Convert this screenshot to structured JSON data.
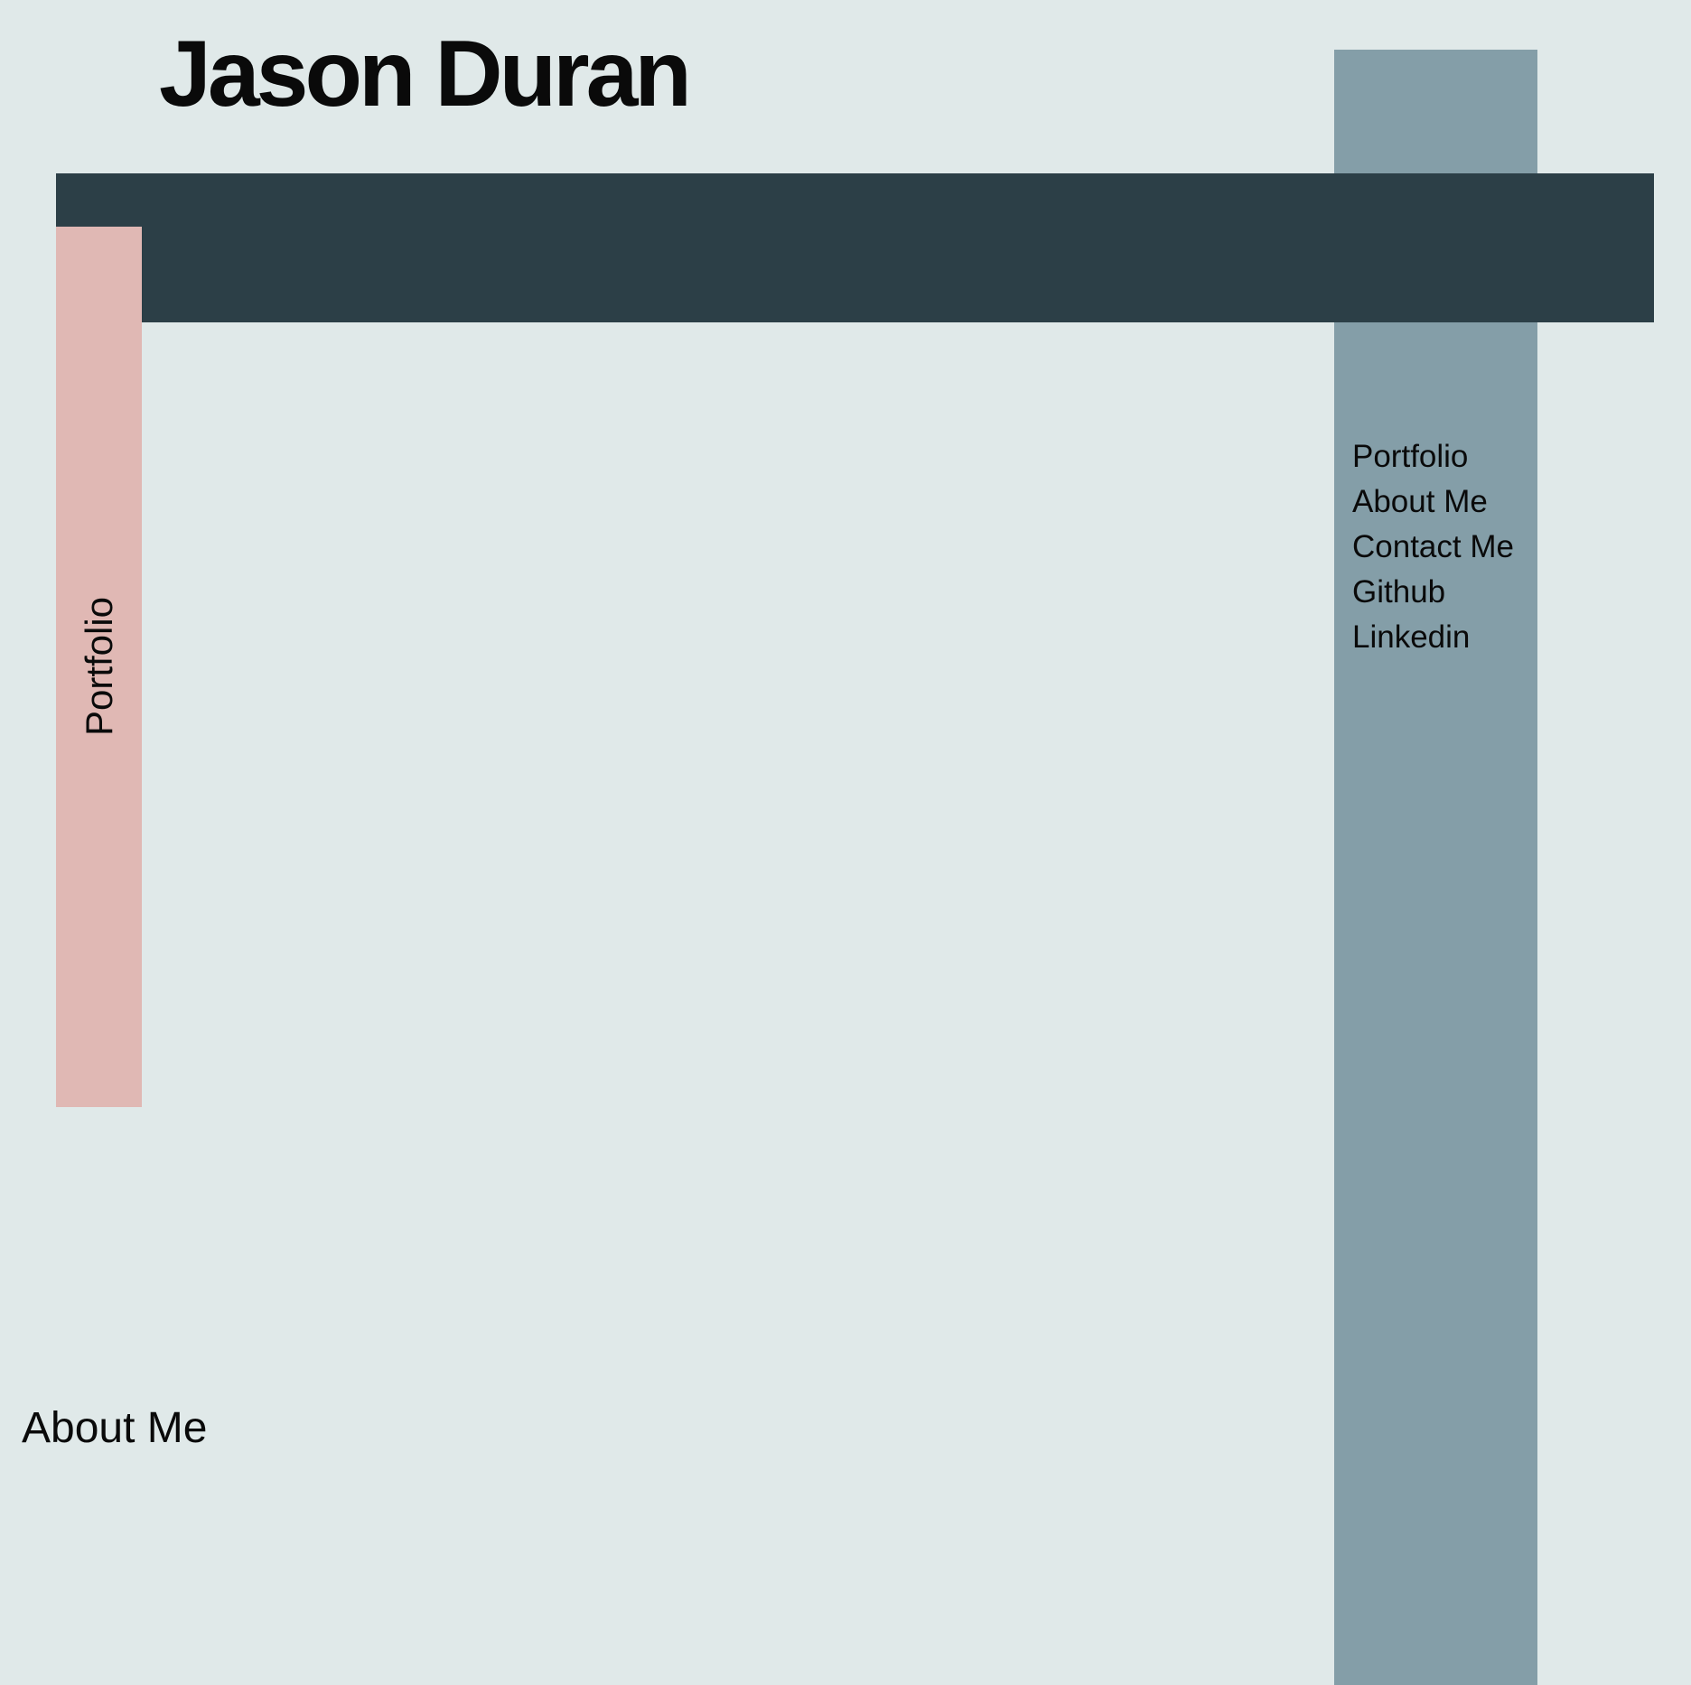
{
  "site": {
    "title": "Jason Duran"
  },
  "colors": {
    "background": "#e0e9e9",
    "header_bar": "#2c3f47",
    "nav_column": "#849ea8",
    "portfolio_tab": "#e0b8b4",
    "text": "#0a0a0a"
  },
  "side_tab": {
    "label": "Portfolio"
  },
  "nav": {
    "items": [
      {
        "label": "Portfolio"
      },
      {
        "label": "About Me"
      },
      {
        "label": "Contact Me"
      },
      {
        "label": "Github"
      },
      {
        "label": "Linkedin"
      }
    ]
  },
  "sections": {
    "about_heading": "About Me"
  }
}
